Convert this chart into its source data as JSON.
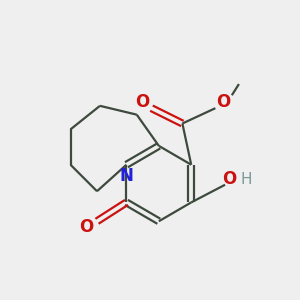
{
  "bg_color": "#efefef",
  "bond_color": "#3d4a3d",
  "n_color": "#2020dd",
  "o_color": "#cc1111",
  "h_color": "#7a9a9a",
  "lw": 1.6,
  "figsize": [
    3.0,
    3.0
  ],
  "dpi": 100,
  "xlim": [
    0,
    10
  ],
  "ylim": [
    0,
    10
  ]
}
